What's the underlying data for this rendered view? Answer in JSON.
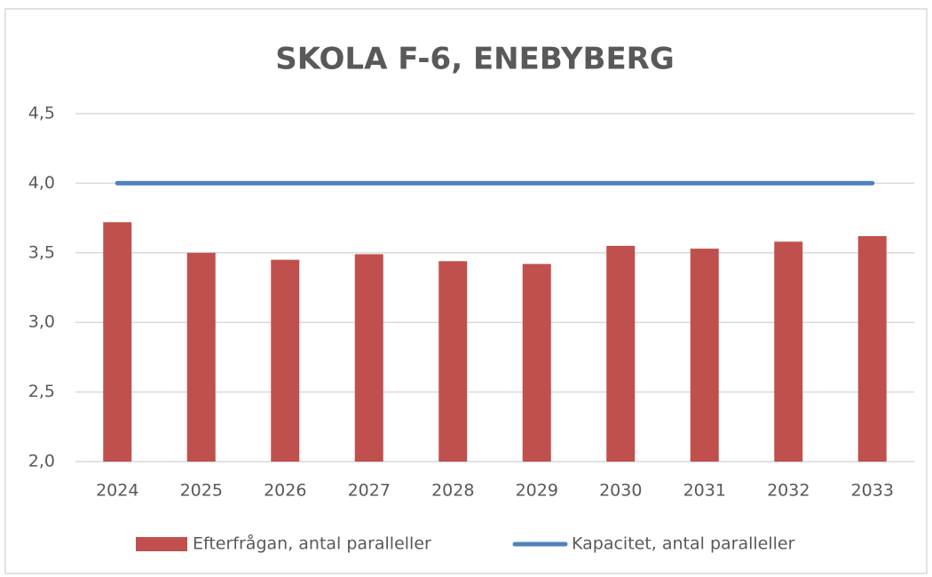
{
  "chart_data": {
    "type": "bar",
    "title": "SKOLA F-6, ENEBYBERG",
    "categories": [
      "2024",
      "2025",
      "2026",
      "2027",
      "2028",
      "2029",
      "2030",
      "2031",
      "2032",
      "2033"
    ],
    "series": [
      {
        "name": "Efterfrågan, antal paralleller",
        "type": "bar",
        "color": "#c0504d",
        "values": [
          3.72,
          3.5,
          3.45,
          3.49,
          3.44,
          3.42,
          3.55,
          3.53,
          3.58,
          3.62
        ]
      },
      {
        "name": "Kapacitet, antal paralleller",
        "type": "line",
        "color": "#4f81bd",
        "values": [
          4.0,
          4.0,
          4.0,
          4.0,
          4.0,
          4.0,
          4.0,
          4.0,
          4.0,
          4.0
        ]
      }
    ],
    "ylim": [
      2.0,
      4.5
    ],
    "yticks": [
      {
        "value": 2.0,
        "label": "2,0"
      },
      {
        "value": 2.5,
        "label": "2,5"
      },
      {
        "value": 3.0,
        "label": "3,0"
      },
      {
        "value": 3.5,
        "label": "3,5"
      },
      {
        "value": 4.0,
        "label": "4,0"
      },
      {
        "value": 4.5,
        "label": "4,5"
      }
    ],
    "grid": true,
    "legend": "bottom"
  }
}
